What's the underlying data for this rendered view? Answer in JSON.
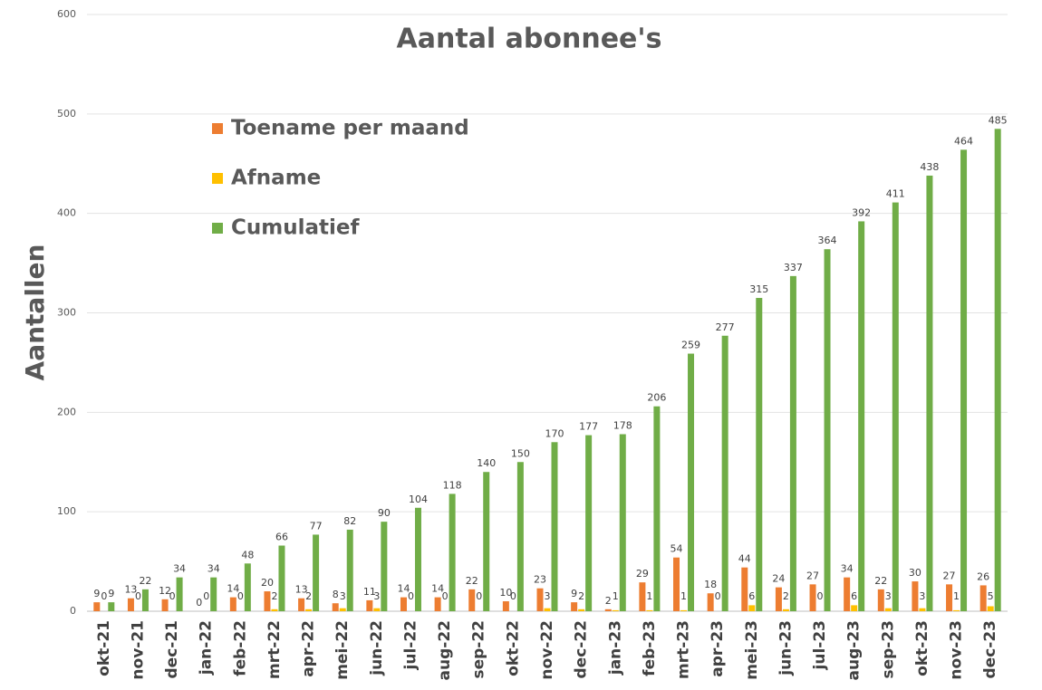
{
  "chart_data": {
    "type": "bar",
    "title": "Aantal abonnee's",
    "y_label": "Aantallen",
    "categories": [
      "okt-21",
      "nov-21",
      "dec-21",
      "jan-22",
      "feb-22",
      "mrt-22",
      "apr-22",
      "mei-22",
      "jun-22",
      "jul-22",
      "aug-22",
      "sep-22",
      "okt-22",
      "nov-22",
      "dec-22",
      "jan-23",
      "feb-23",
      "mrt-23",
      "apr-23",
      "mei-23",
      "jun-23",
      "jul-23",
      "aug-23",
      "sep-23",
      "okt-23",
      "nov-23",
      "dec-23"
    ],
    "series": [
      {
        "name": "Toename per maand",
        "color": "#ED7D31",
        "values": [
          9,
          13,
          12,
          0,
          14,
          20,
          13,
          8,
          11,
          14,
          14,
          22,
          10,
          23,
          9,
          2,
          29,
          54,
          18,
          44,
          24,
          27,
          34,
          22,
          30,
          27,
          26
        ]
      },
      {
        "name": "Afname",
        "color": "#FFC000",
        "values": [
          0,
          0,
          0,
          0,
          0,
          2,
          2,
          3,
          3,
          0,
          0,
          0,
          0,
          3,
          2,
          1,
          1,
          1,
          0,
          6,
          2,
          0,
          6,
          3,
          3,
          1,
          5
        ]
      },
      {
        "name": "Cumulatief",
        "color": "#70AD47",
        "values": [
          9,
          22,
          34,
          34,
          48,
          66,
          77,
          82,
          90,
          104,
          118,
          140,
          150,
          170,
          177,
          178,
          206,
          259,
          277,
          315,
          337,
          364,
          392,
          411,
          438,
          464,
          485
        ]
      }
    ],
    "ylim": [
      0,
      600
    ],
    "yticks": [
      0,
      100,
      200,
      300,
      400,
      500,
      600
    ],
    "grid": true,
    "legend": "upper left"
  }
}
